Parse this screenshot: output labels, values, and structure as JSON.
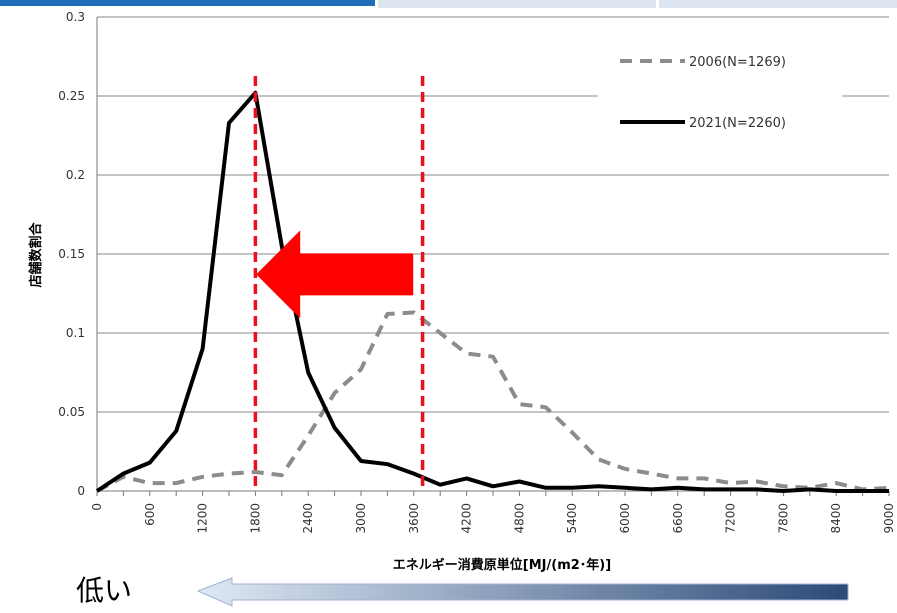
{
  "chart_data": {
    "type": "line",
    "ylabel": "店舗数割合",
    "xlabel": "エネルギー消費原単位[MJ/(m2･年)]",
    "ylim": [
      0,
      0.3
    ],
    "yticks": [
      "0",
      "0.05",
      "0.1",
      "0.15",
      "0.2",
      "0.25",
      "0.3"
    ],
    "xlim": [
      0,
      9000
    ],
    "xticks": [
      "0",
      "600",
      "1200",
      "1800",
      "2400",
      "3000",
      "3600",
      "4200",
      "4800",
      "5400",
      "6000",
      "6600",
      "7200",
      "7800",
      "8400",
      "9000"
    ],
    "grid": "horizontal",
    "legend_position": "top-right",
    "series": [
      {
        "name": "2006(N=1269)",
        "style": "dashed",
        "color": "#8c8c8c",
        "x": [
          0,
          300,
          600,
          900,
          1200,
          1500,
          1800,
          2100,
          2400,
          2700,
          3000,
          3300,
          3600,
          3900,
          4200,
          4500,
          4800,
          5100,
          5400,
          5700,
          6000,
          6300,
          6600,
          6900,
          7200,
          7500,
          7800,
          8100,
          8400,
          8700,
          9000
        ],
        "values": [
          0,
          0.009,
          0.005,
          0.005,
          0.009,
          0.011,
          0.012,
          0.01,
          0.035,
          0.062,
          0.077,
          0.112,
          0.113,
          0.1,
          0.087,
          0.085,
          0.055,
          0.053,
          0.037,
          0.02,
          0.014,
          0.011,
          0.008,
          0.008,
          0.005,
          0.006,
          0.003,
          0.002,
          0.005,
          0.001,
          0.002
        ]
      },
      {
        "name": "2021(N=2260)",
        "style": "solid",
        "color": "#000000",
        "x": [
          0,
          300,
          600,
          900,
          1200,
          1500,
          1800,
          2100,
          2400,
          2700,
          3000,
          3300,
          3600,
          3900,
          4200,
          4500,
          4800,
          5100,
          5400,
          5700,
          6000,
          6300,
          6600,
          6900,
          7200,
          7500,
          7800,
          8100,
          8400,
          8700,
          9000
        ],
        "values": [
          0,
          0.011,
          0.018,
          0.038,
          0.09,
          0.233,
          0.252,
          0.155,
          0.075,
          0.04,
          0.019,
          0.017,
          0.011,
          0.004,
          0.008,
          0.003,
          0.006,
          0.002,
          0.002,
          0.003,
          0.002,
          0.001,
          0.002,
          0.001,
          0.001,
          0.001,
          0.0,
          0.001,
          0.0,
          0.0,
          0.0
        ]
      }
    ],
    "annotations": {
      "reference_lines_x": [
        1800,
        3700
      ],
      "reference_line_color": "#e8101f",
      "shift_arrow": {
        "from_x": 3650,
        "to_x": 1900,
        "y": 0.17,
        "color": "#ff0000"
      },
      "bottom_arrow_gradient": [
        "#dfe8f4",
        "#2b4a78"
      ]
    }
  },
  "bottom": {
    "low_label": "低い"
  },
  "colors": {
    "tab_blue": "#1f6fb8",
    "tab_light": "#dde5f0"
  }
}
